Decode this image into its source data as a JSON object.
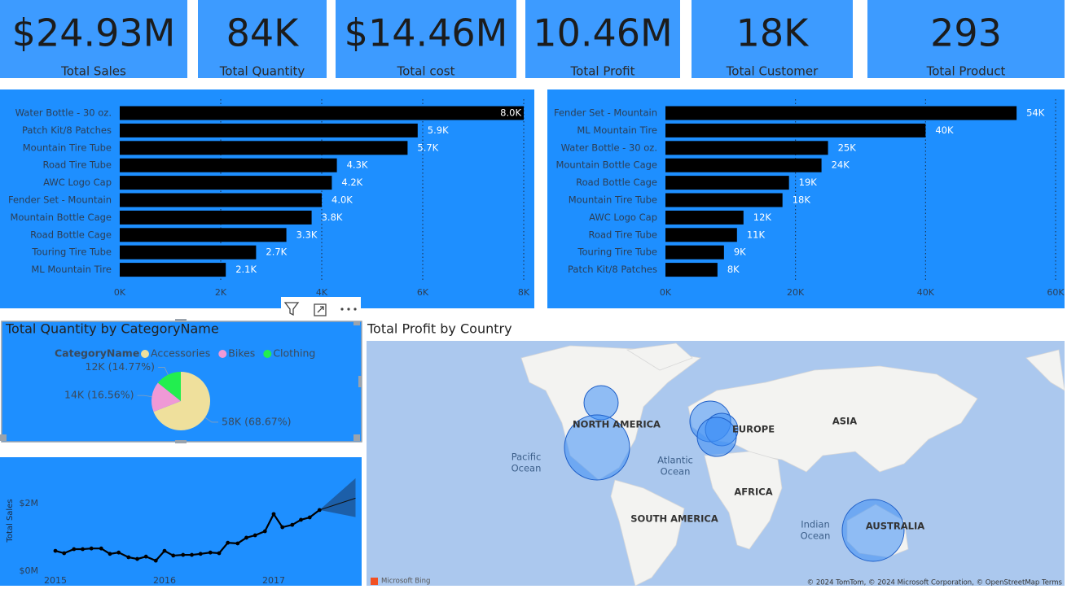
{
  "kpis": [
    {
      "value": "$24.93M",
      "label": "Total Sales"
    },
    {
      "value": "84K",
      "label": "Total Quantity"
    },
    {
      "value": "$14.46M",
      "label": "Total cost"
    },
    {
      "value": "10.46M",
      "label": "Total Profit"
    },
    {
      "value": "18K",
      "label": "Total Customer"
    },
    {
      "value": "293",
      "label": "Total Product"
    }
  ],
  "chart_data": [
    {
      "type": "bar",
      "orientation": "horizontal",
      "color": "#000000",
      "grid": true,
      "categories": [
        "Water Bottle - 30 oz.",
        "Patch Kit/8 Patches",
        "Mountain Tire Tube",
        "Road Tire Tube",
        "AWC Logo Cap",
        "Fender Set - Mountain",
        "Mountain Bottle Cage",
        "Road Bottle Cage",
        "Touring Tire Tube",
        "ML Mountain Tire"
      ],
      "values": [
        8000,
        5900,
        5700,
        4300,
        4200,
        4000,
        3800,
        3300,
        2700,
        2100
      ],
      "value_labels": [
        "8.0K",
        "5.9K",
        "5.7K",
        "4.3K",
        "4.2K",
        "4.0K",
        "3.8K",
        "3.3K",
        "2.7K",
        "2.1K"
      ],
      "xlim": [
        0,
        8000
      ],
      "xticks": [
        {
          "value": 0,
          "label": "0K"
        },
        {
          "value": 2000,
          "label": "2K"
        },
        {
          "value": 4000,
          "label": "4K"
        },
        {
          "value": 6000,
          "label": "6K"
        },
        {
          "value": 8000,
          "label": "8K"
        }
      ]
    },
    {
      "type": "bar",
      "orientation": "horizontal",
      "color": "#000000",
      "grid": true,
      "categories": [
        "Fender Set - Mountain",
        "ML Mountain Tire",
        "Water Bottle - 30 oz.",
        "Mountain Bottle Cage",
        "Road Bottle Cage",
        "Mountain Tire Tube",
        "AWC Logo Cap",
        "Road Tire Tube",
        "Touring Tire Tube",
        "Patch Kit/8 Patches"
      ],
      "values": [
        54000,
        40000,
        25000,
        24000,
        19000,
        18000,
        12000,
        11000,
        9000,
        8000
      ],
      "value_labels": [
        "54K",
        "40K",
        "25K",
        "24K",
        "19K",
        "18K",
        "12K",
        "11K",
        "9K",
        "8K"
      ],
      "xlim": [
        0,
        60000
      ],
      "xticks": [
        {
          "value": 0,
          "label": "0K"
        },
        {
          "value": 20000,
          "label": "20K"
        },
        {
          "value": 40000,
          "label": "40K"
        },
        {
          "value": 60000,
          "label": "60K"
        }
      ]
    },
    {
      "type": "pie",
      "title": "Total Quantity by CategoryName",
      "legend_title": "CategoryName",
      "categories": [
        "Accessories",
        "Bikes",
        "Clothing"
      ],
      "values": [
        58000,
        14000,
        12000
      ],
      "value_labels": [
        "58K (68.67%)",
        "14K (16.56%)",
        "12K (14.77%)"
      ],
      "colors": [
        "#efe09c",
        "#ef99d6",
        "#22ee4f"
      ]
    },
    {
      "type": "line",
      "ylabel": "Total Sales",
      "color": "#000000",
      "x": [
        2015,
        2015.08,
        2015.17,
        2015.25,
        2015.33,
        2015.42,
        2015.5,
        2015.58,
        2015.67,
        2015.75,
        2015.83,
        2015.92,
        2016,
        2016.08,
        2016.17,
        2016.25,
        2016.33,
        2016.42,
        2016.5,
        2016.58,
        2016.67,
        2016.75,
        2016.83,
        2016.92,
        2017,
        2017.08,
        2017.17,
        2017.25,
        2017.33,
        2017.42
      ],
      "values": [
        0.6,
        0.53,
        0.65,
        0.65,
        0.67,
        0.67,
        0.51,
        0.55,
        0.41,
        0.36,
        0.43,
        0.31,
        0.6,
        0.46,
        0.48,
        0.48,
        0.51,
        0.55,
        0.53,
        0.84,
        0.82,
        0.99,
        1.06,
        1.18,
        1.69,
        1.3,
        1.37,
        1.52,
        1.59,
        1.81
      ],
      "forecast": {
        "x": [
          2017.42,
          2017.75
        ],
        "values": [
          1.81,
          2.16
        ],
        "lower": [
          1.81,
          1.6
        ],
        "upper": [
          1.81,
          2.75
        ]
      },
      "xlim": [
        2014.95,
        2017.75
      ],
      "xticks": [
        2015,
        2016,
        2017
      ],
      "ylim": [
        0,
        3
      ],
      "yticks": [
        {
          "value": 0,
          "label": "$0M"
        },
        {
          "value": 2,
          "label": "$2M"
        }
      ]
    },
    {
      "type": "map",
      "title": "Total Profit by Country",
      "region_labels": [
        "NORTH AMERICA",
        "EUROPE",
        "ASIA",
        "AFRICA",
        "SOUTH AMERICA",
        "AUSTRALIA"
      ],
      "ocean_labels": [
        [
          "Pacific",
          "Ocean"
        ],
        [
          "Atlantic",
          "Ocean"
        ],
        [
          "Indian",
          "Ocean"
        ]
      ],
      "attribution": "© 2024 TomTom, © 2024 Microsoft Corporation, © OpenStreetMap  Terms",
      "provider": "Microsoft Bing"
    }
  ]
}
